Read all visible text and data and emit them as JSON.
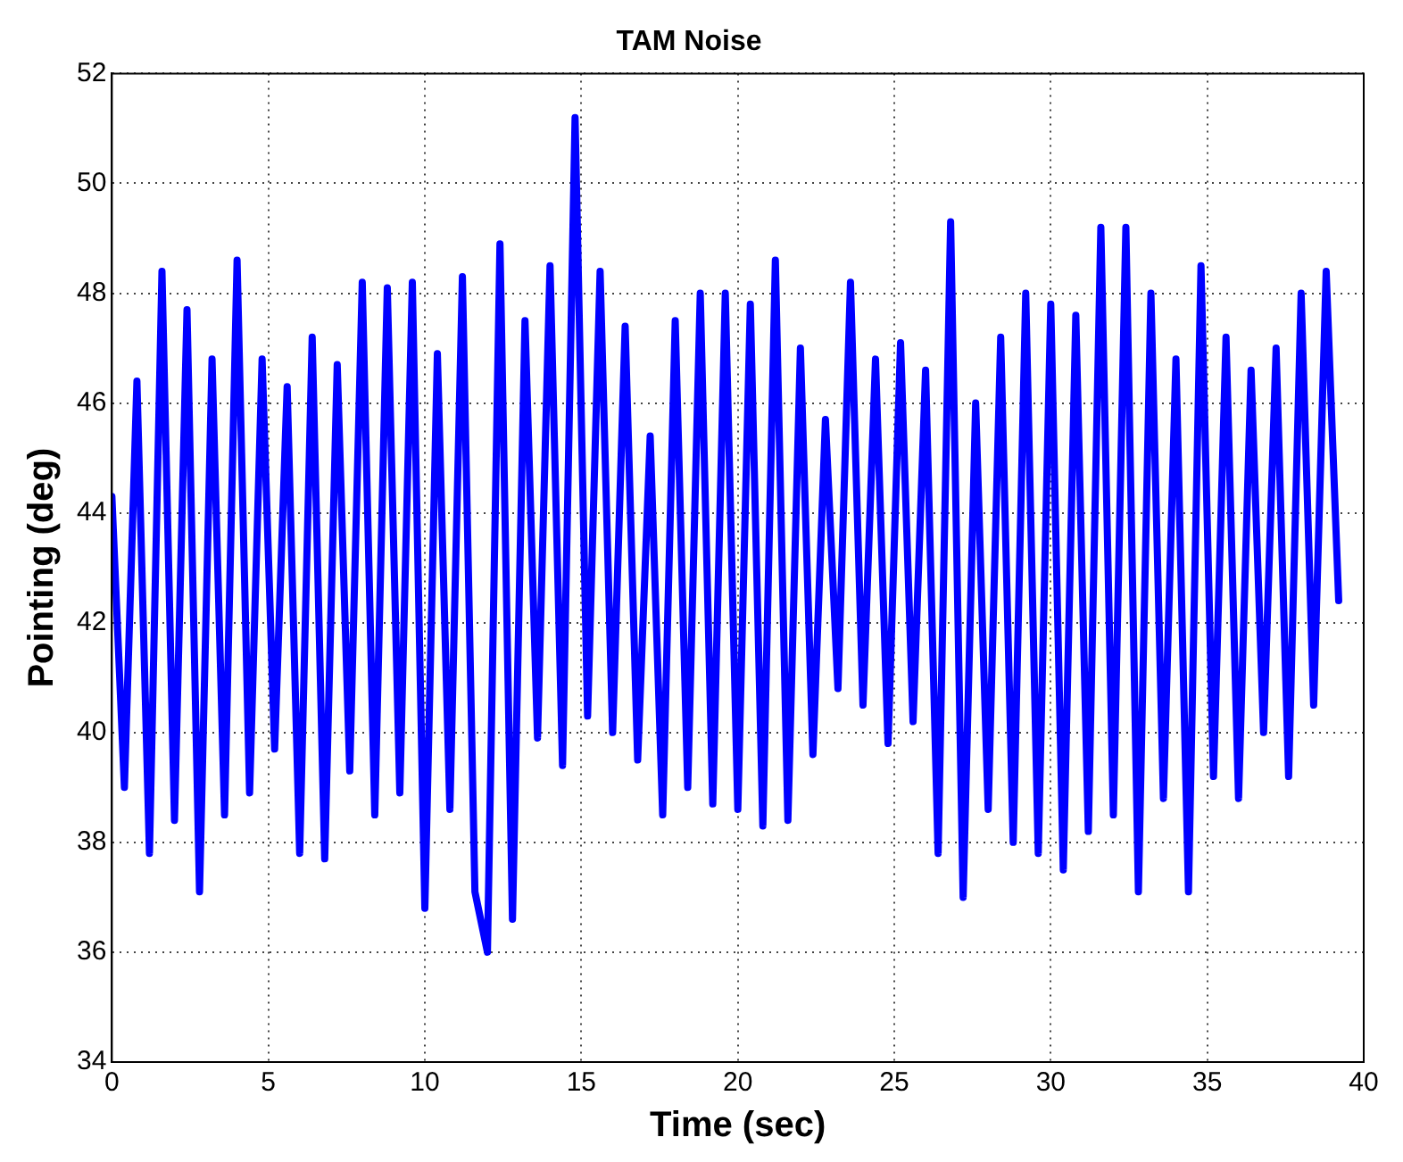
{
  "chart_data": {
    "type": "line",
    "title": "TAM Noise",
    "xlabel": "Time (sec)",
    "ylabel": "Pointing (deg)",
    "color": "#0000ff",
    "line_style": "solid",
    "grid": true,
    "xlim": [
      0,
      40
    ],
    "xticks": [
      0,
      5,
      10,
      15,
      20,
      25,
      30,
      35,
      40
    ],
    "ylim": [
      34,
      52
    ],
    "yticks": [
      34,
      36,
      38,
      40,
      42,
      44,
      46,
      48,
      50,
      52
    ],
    "x": [
      0,
      0.4,
      0.8,
      1.2,
      1.6,
      2,
      2.4,
      2.8,
      3.2,
      3.6,
      4,
      4.4,
      4.8,
      5.2,
      5.6,
      6,
      6.4,
      6.8,
      7.2,
      7.6,
      8,
      8.4,
      8.8,
      9.2,
      9.6,
      10,
      10.4,
      10.8,
      11.2,
      11.6,
      12,
      12.4,
      12.8,
      13.2,
      13.6,
      14,
      14.4,
      14.8,
      15.2,
      15.6,
      16,
      16.4,
      16.8,
      17.2,
      17.6,
      18,
      18.4,
      18.8,
      19.2,
      19.6,
      20,
      20.4,
      20.8,
      21.2,
      21.6,
      22,
      22.4,
      22.8,
      23.2,
      23.6,
      24,
      24.4,
      24.8,
      25.2,
      25.6,
      26,
      26.4,
      26.8,
      27.2,
      27.6,
      28,
      28.4,
      28.8,
      29.2,
      29.6,
      30,
      30.4,
      30.8,
      31.2,
      31.6,
      32,
      32.4,
      32.8,
      33.2,
      33.6,
      34,
      34.4,
      34.8,
      35.2,
      35.6,
      36,
      36.4,
      36.8,
      37.2,
      37.6,
      38,
      38.4,
      38.8,
      39.2
    ],
    "values": [
      44.3,
      39.0,
      46.4,
      37.8,
      48.4,
      38.4,
      47.7,
      37.1,
      46.8,
      38.5,
      48.6,
      38.9,
      46.8,
      39.7,
      46.3,
      37.8,
      47.2,
      37.7,
      46.7,
      39.3,
      48.2,
      38.5,
      48.1,
      38.9,
      48.2,
      36.8,
      46.9,
      38.6,
      48.3,
      37.1,
      36.0,
      48.9,
      36.6,
      47.5,
      39.9,
      48.5,
      39.4,
      51.2,
      40.3,
      48.4,
      40.0,
      47.4,
      39.5,
      45.4,
      38.5,
      47.5,
      39.0,
      48.0,
      38.7,
      48.0,
      38.6,
      47.8,
      38.3,
      48.6,
      38.4,
      47.0,
      39.6,
      45.7,
      40.8,
      48.2,
      40.5,
      46.8,
      39.8,
      47.1,
      40.2,
      46.6,
      37.8,
      49.3,
      37.0,
      46.0,
      38.6,
      47.2,
      38.0,
      48.0,
      37.8,
      47.8,
      37.5,
      47.6,
      38.2,
      49.2,
      38.5,
      49.2,
      37.1,
      48.0,
      38.8,
      46.8,
      37.1,
      48.5,
      39.2,
      47.2,
      38.8,
      46.6,
      40.0,
      47.0,
      39.2,
      48.0,
      40.5,
      48.4,
      42.4
    ]
  }
}
